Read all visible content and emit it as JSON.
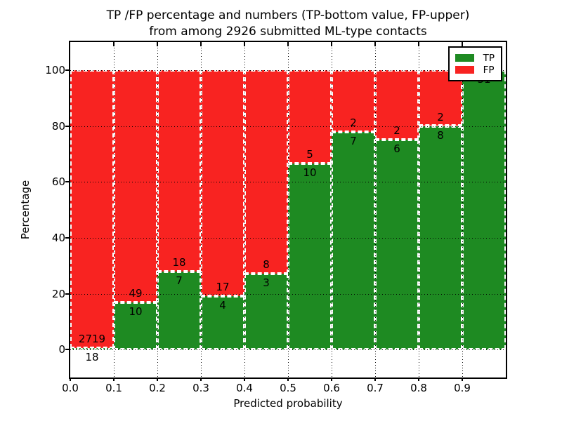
{
  "title": {
    "line1": "TP /FP percentage and numbers (TP-bottom value, FP-upper)",
    "line2": "from among 2926 submitted ML-type contacts"
  },
  "y_axis": {
    "label": "Percentage",
    "ticks": [
      "0",
      "20",
      "40",
      "60",
      "80",
      "100"
    ],
    "tick_values": [
      0,
      20,
      40,
      60,
      80,
      100
    ]
  },
  "x_axis": {
    "label": "Predicted probability",
    "ticks": [
      "0.0",
      "0.1",
      "0.2",
      "0.3",
      "0.4",
      "0.5",
      "0.6",
      "0.7",
      "0.8",
      "0.9"
    ],
    "tick_values": [
      0.0,
      0.1,
      0.2,
      0.3,
      0.4,
      0.5,
      0.6,
      0.7,
      0.8,
      0.9
    ]
  },
  "legend": {
    "position": "upper right",
    "items": [
      {
        "name": "TP",
        "label": "TP",
        "color": "#1e8a22"
      },
      {
        "name": "FP",
        "label": "FP",
        "color": "#f82321"
      }
    ]
  },
  "colors": {
    "tp_green": "#1e8a22",
    "fp_red": "#f82321",
    "background": "#ffffff",
    "axis": "#000000"
  },
  "chart_data": {
    "type": "bar",
    "stacked": true,
    "normalized_percent": true,
    "title": "TP /FP percentage and numbers (TP-bottom value, FP-upper) from among 2926 submitted ML-type contacts",
    "xlabel": "Predicted probability",
    "ylabel": "Percentage",
    "xlim": [
      0.0,
      1.0
    ],
    "ylim": [
      -10,
      110
    ],
    "grid": true,
    "bin_starts": [
      0.0,
      0.1,
      0.2,
      0.3,
      0.4,
      0.5,
      0.6,
      0.7,
      0.8,
      0.9
    ],
    "bin_width": 0.1,
    "categories": [
      "0.0-0.1",
      "0.1-0.2",
      "0.2-0.3",
      "0.3-0.4",
      "0.4-0.5",
      "0.5-0.6",
      "0.6-0.7",
      "0.7-0.8",
      "0.8-0.9",
      "0.9-1.0"
    ],
    "series": [
      {
        "name": "TP",
        "color": "#1e8a22",
        "counts": [
          18,
          10,
          7,
          4,
          3,
          10,
          7,
          6,
          8,
          31
        ],
        "percent": [
          0.66,
          16.95,
          28.0,
          19.05,
          27.27,
          66.67,
          77.78,
          75.0,
          80.0,
          100.0
        ]
      },
      {
        "name": "FP",
        "color": "#f82321",
        "counts": [
          2719,
          49,
          18,
          17,
          8,
          5,
          2,
          2,
          2,
          0
        ],
        "percent": [
          99.34,
          83.05,
          72.0,
          80.95,
          72.73,
          33.33,
          22.22,
          25.0,
          20.0,
          0.0
        ]
      }
    ],
    "count_labels": {
      "tp": [
        "18",
        "10",
        "7",
        "4",
        "3",
        "10",
        "7",
        "6",
        "8",
        "31"
      ],
      "fp": [
        "2719",
        "49",
        "18",
        "17",
        "8",
        "5",
        "2",
        "2",
        "2",
        null
      ]
    },
    "total_contacts": 2926
  }
}
